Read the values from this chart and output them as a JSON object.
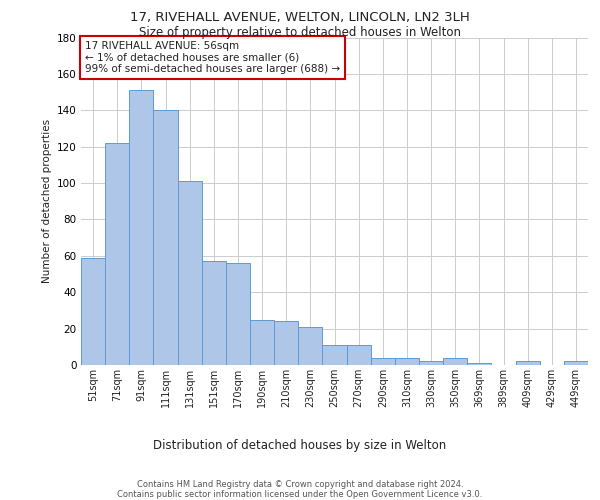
{
  "title_line1": "17, RIVEHALL AVENUE, WELTON, LINCOLN, LN2 3LH",
  "title_line2": "Size of property relative to detached houses in Welton",
  "xlabel": "Distribution of detached houses by size in Welton",
  "ylabel": "Number of detached properties",
  "categories": [
    "51sqm",
    "71sqm",
    "91sqm",
    "111sqm",
    "131sqm",
    "151sqm",
    "170sqm",
    "190sqm",
    "210sqm",
    "230sqm",
    "250sqm",
    "270sqm",
    "290sqm",
    "310sqm",
    "330sqm",
    "350sqm",
    "369sqm",
    "389sqm",
    "409sqm",
    "429sqm",
    "449sqm"
  ],
  "values": [
    59,
    122,
    151,
    140,
    101,
    57,
    56,
    25,
    24,
    21,
    11,
    11,
    4,
    4,
    2,
    4,
    1,
    0,
    2,
    0,
    2
  ],
  "bar_color": "#aec6e8",
  "bar_edge_color": "#5b9bd5",
  "annotation_text": "17 RIVEHALL AVENUE: 56sqm\n← 1% of detached houses are smaller (6)\n99% of semi-detached houses are larger (688) →",
  "annotation_box_color": "#ffffff",
  "annotation_box_edge_color": "#cc0000",
  "ylim": [
    0,
    180
  ],
  "yticks": [
    0,
    20,
    40,
    60,
    80,
    100,
    120,
    140,
    160,
    180
  ],
  "grid_color": "#cccccc",
  "background_color": "#ffffff",
  "footer_line1": "Contains HM Land Registry data © Crown copyright and database right 2024.",
  "footer_line2": "Contains public sector information licensed under the Open Government Licence v3.0."
}
